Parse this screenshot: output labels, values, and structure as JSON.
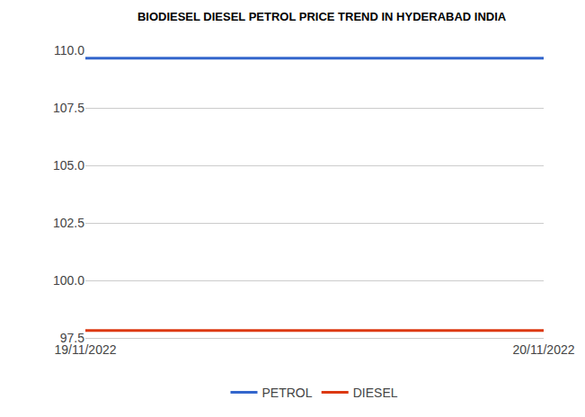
{
  "chart_data": {
    "type": "line",
    "title": "BIODIESEL DIESEL PETROL PRICE TREND IN HYDERABAD INDIA",
    "categories": [
      "19/11/2022",
      "20/11/2022"
    ],
    "series": [
      {
        "name": "PETROL",
        "color": "#3366cc",
        "values": [
          109.66,
          109.66
        ]
      },
      {
        "name": "DIESEL",
        "color": "#dc3912",
        "values": [
          97.82,
          97.82
        ]
      }
    ],
    "ylim": [
      97.5,
      110
    ],
    "yticks": [
      97.5,
      {
        "value": 100,
        "label": "100.0"
      },
      102.5,
      {
        "value": 105,
        "label": "105.0"
      },
      107.5,
      {
        "value": 110,
        "label": "110.0"
      }
    ],
    "grid": true,
    "legend": "bottom"
  }
}
